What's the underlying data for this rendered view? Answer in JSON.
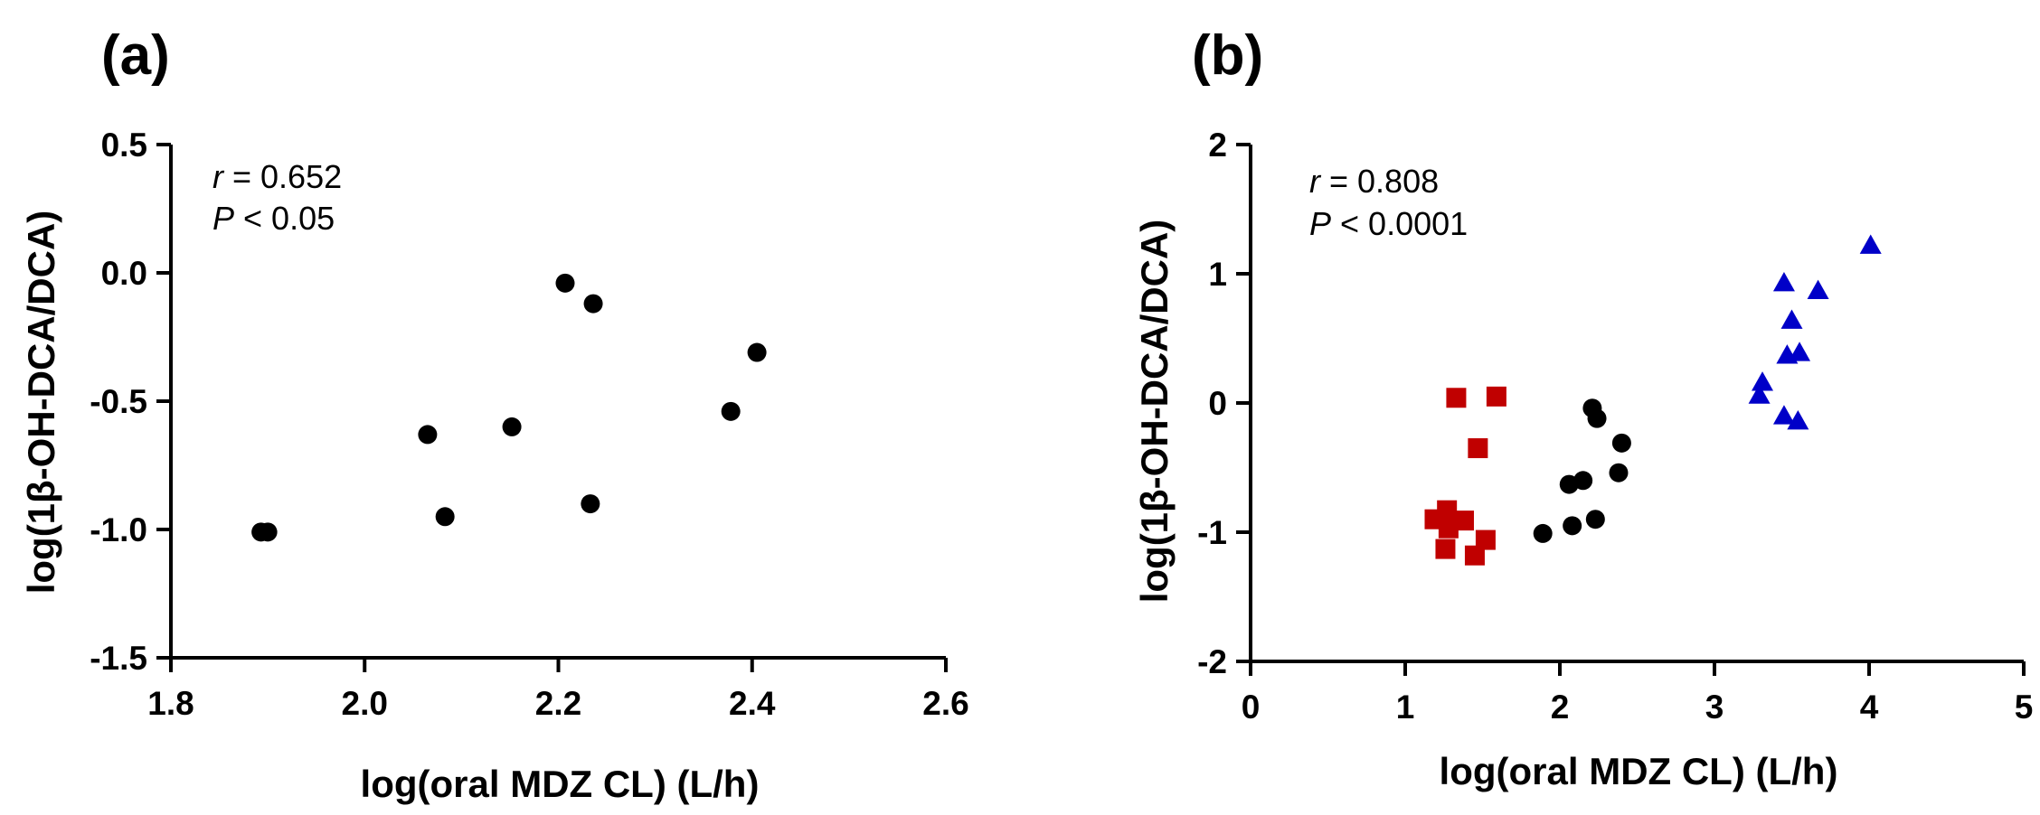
{
  "chart_data": [
    {
      "panel_label": "(a)",
      "type": "scatter",
      "xlabel": "log(oral MDZ CL) (L/h)",
      "ylabel": "log(1β-OH-DCA/DCA)",
      "xlim": [
        1.8,
        2.6
      ],
      "ylim": [
        -1.5,
        0.5
      ],
      "xticks": [
        1.8,
        2.0,
        2.2,
        2.4,
        2.6
      ],
      "xtick_labels": [
        "1.8",
        "2.0",
        "2.2",
        "2.4",
        "2.6"
      ],
      "yticks": [
        -1.5,
        -1.0,
        -0.5,
        0.0,
        0.5
      ],
      "ytick_labels": [
        "-1.5",
        "-1.0",
        "-0.5",
        "0.0",
        "0.5"
      ],
      "annotation": {
        "r_symbol": "r",
        "r_text": " = 0.652",
        "p_symbol": "P",
        "p_text": " < 0.05"
      },
      "series": [
        {
          "name": "data",
          "marker": "circle",
          "color": "#000000",
          "points": [
            [
              1.893,
              -1.01
            ],
            [
              1.9,
              -1.01
            ],
            [
              2.065,
              -0.63
            ],
            [
              2.083,
              -0.95
            ],
            [
              2.152,
              -0.6
            ],
            [
              2.207,
              -0.04
            ],
            [
              2.236,
              -0.12
            ],
            [
              2.233,
              -0.9
            ],
            [
              2.378,
              -0.54
            ],
            [
              2.405,
              -0.31
            ]
          ]
        }
      ]
    },
    {
      "panel_label": "(b)",
      "type": "scatter",
      "xlabel": "log(oral MDZ CL) (L/h)",
      "ylabel": "log(1β-OH-DCA/DCA)",
      "xlim": [
        0,
        5
      ],
      "ylim": [
        -2,
        2
      ],
      "xticks": [
        0,
        1,
        2,
        3,
        4,
        5
      ],
      "xtick_labels": [
        "0",
        "1",
        "2",
        "3",
        "4",
        "5"
      ],
      "yticks": [
        -2,
        -1,
        0,
        1,
        2
      ],
      "ytick_labels": [
        "-2",
        "-1",
        "0",
        "1",
        "2"
      ],
      "annotation": {
        "r_symbol": "r",
        "r_text": " = 0.808",
        "p_symbol": "P",
        "p_text": " < 0.0001"
      },
      "series": [
        {
          "name": "squares",
          "marker": "square",
          "color": "#c00000",
          "points": [
            [
              1.33,
              0.04
            ],
            [
              1.59,
              0.05
            ],
            [
              1.47,
              -0.35
            ],
            [
              1.27,
              -0.83
            ],
            [
              1.19,
              -0.9
            ],
            [
              1.38,
              -0.91
            ],
            [
              1.28,
              -0.97
            ],
            [
              1.52,
              -1.06
            ],
            [
              1.26,
              -1.13
            ],
            [
              1.45,
              -1.18
            ]
          ]
        },
        {
          "name": "circles",
          "marker": "circle",
          "color": "#000000",
          "points": [
            [
              1.89,
              -1.01
            ],
            [
              2.21,
              -0.04
            ],
            [
              2.24,
              -0.12
            ],
            [
              2.4,
              -0.31
            ],
            [
              2.38,
              -0.54
            ],
            [
              2.06,
              -0.63
            ],
            [
              2.15,
              -0.6
            ],
            [
              2.08,
              -0.95
            ],
            [
              2.23,
              -0.9
            ]
          ]
        },
        {
          "name": "triangles",
          "marker": "triangle",
          "color": "#0000c8",
          "points": [
            [
              4.01,
              1.22
            ],
            [
              3.45,
              0.93
            ],
            [
              3.67,
              0.87
            ],
            [
              3.5,
              0.64
            ],
            [
              3.47,
              0.37
            ],
            [
              3.55,
              0.39
            ],
            [
              3.31,
              0.16
            ],
            [
              3.29,
              0.06
            ],
            [
              3.45,
              -0.1
            ],
            [
              3.54,
              -0.14
            ]
          ]
        }
      ]
    }
  ]
}
